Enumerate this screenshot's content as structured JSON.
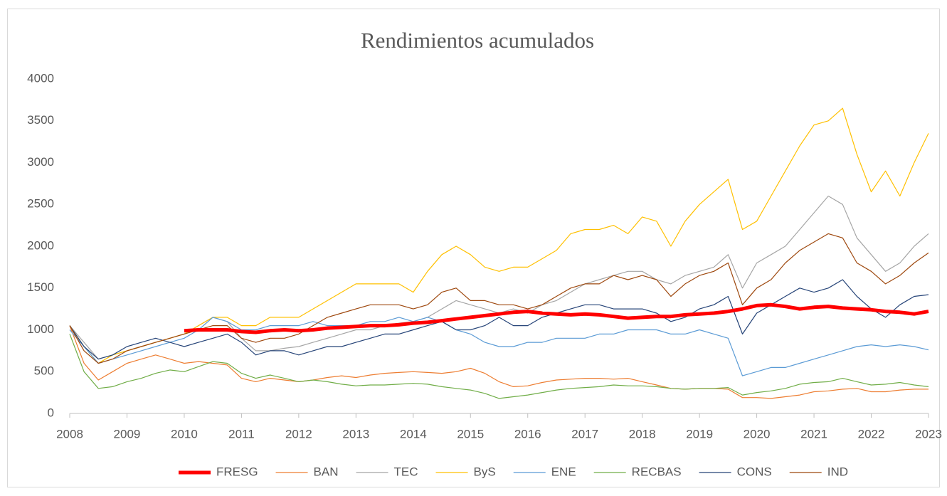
{
  "chart_data": {
    "type": "line",
    "title": "Rendimientos acumulados",
    "x": [
      2008,
      2008.25,
      2008.5,
      2008.75,
      2009,
      2009.25,
      2009.5,
      2009.75,
      2010,
      2010.25,
      2010.5,
      2010.75,
      2011,
      2011.25,
      2011.5,
      2011.75,
      2012,
      2012.25,
      2012.5,
      2012.75,
      2013,
      2013.25,
      2013.5,
      2013.75,
      2014,
      2014.25,
      2014.5,
      2014.75,
      2015,
      2015.25,
      2015.5,
      2015.75,
      2016,
      2016.25,
      2016.5,
      2016.75,
      2017,
      2017.25,
      2017.5,
      2017.75,
      2018,
      2018.25,
      2018.5,
      2018.75,
      2019,
      2019.25,
      2019.5,
      2019.75,
      2020,
      2020.25,
      2020.5,
      2020.75,
      2021,
      2021.25,
      2021.5,
      2021.75,
      2022,
      2022.25,
      2022.5,
      2022.75,
      2023
    ],
    "xlim": [
      2008,
      2023
    ],
    "xticks": [
      2008,
      2009,
      2010,
      2011,
      2012,
      2013,
      2014,
      2015,
      2016,
      2017,
      2018,
      2019,
      2020,
      2021,
      2022,
      2023
    ],
    "ylim": [
      0,
      4000
    ],
    "yticks": [
      0,
      500,
      1000,
      1500,
      2000,
      2500,
      3000,
      3500,
      4000
    ],
    "grid": false,
    "legend": "bottom",
    "series": [
      {
        "name": "FRESG",
        "color": "#ff0000",
        "values": [
          null,
          null,
          null,
          null,
          null,
          null,
          null,
          null,
          990,
          1000,
          1000,
          1000,
          980,
          970,
          990,
          1000,
          990,
          1000,
          1020,
          1030,
          1040,
          1050,
          1050,
          1060,
          1080,
          1090,
          1110,
          1130,
          1150,
          1170,
          1190,
          1210,
          1220,
          1200,
          1190,
          1180,
          1190,
          1180,
          1160,
          1140,
          1150,
          1160,
          1160,
          1180,
          1190,
          1200,
          1220,
          1250,
          1290,
          1300,
          1280,
          1250,
          1270,
          1280,
          1260,
          1250,
          1240,
          1220,
          1210,
          1190,
          1220
        ]
      },
      {
        "name": "BAN",
        "color": "#ed7d31",
        "values": [
          1050,
          600,
          400,
          500,
          600,
          650,
          700,
          650,
          600,
          620,
          600,
          580,
          420,
          380,
          420,
          400,
          380,
          400,
          430,
          450,
          430,
          460,
          480,
          490,
          500,
          490,
          480,
          500,
          540,
          480,
          380,
          320,
          330,
          370,
          400,
          410,
          420,
          420,
          410,
          420,
          380,
          340,
          300,
          290,
          300,
          300,
          290,
          190,
          190,
          180,
          200,
          220,
          260,
          270,
          290,
          300,
          260,
          260,
          280,
          290,
          290
        ]
      },
      {
        "name": "TEC",
        "color": "#a5a5a5",
        "values": [
          1050,
          850,
          650,
          700,
          750,
          800,
          850,
          900,
          950,
          1050,
          1150,
          1100,
          900,
          750,
          750,
          780,
          800,
          850,
          900,
          950,
          1000,
          1000,
          1050,
          1080,
          1100,
          1150,
          1250,
          1350,
          1300,
          1250,
          1200,
          1250,
          1200,
          1300,
          1350,
          1450,
          1550,
          1600,
          1650,
          1700,
          1700,
          1600,
          1550,
          1650,
          1700,
          1750,
          1900,
          1500,
          1800,
          1900,
          2000,
          2200,
          2400,
          2600,
          2500,
          2100,
          1900,
          1700,
          1800,
          2000,
          2150
        ]
      },
      {
        "name": "ByS",
        "color": "#ffc000",
        "values": [
          1050,
          800,
          600,
          700,
          750,
          800,
          850,
          900,
          950,
          1050,
          1150,
          1150,
          1050,
          1050,
          1150,
          1150,
          1150,
          1250,
          1350,
          1450,
          1550,
          1550,
          1550,
          1550,
          1450,
          1700,
          1900,
          2000,
          1900,
          1750,
          1700,
          1750,
          1750,
          1850,
          1950,
          2150,
          2200,
          2200,
          2250,
          2150,
          2350,
          2300,
          2000,
          2300,
          2500,
          2650,
          2800,
          2200,
          2300,
          2600,
          2900,
          3200,
          3450,
          3500,
          3650,
          3100,
          2650,
          2900,
          2600,
          3000,
          3350
        ]
      },
      {
        "name": "ENE",
        "color": "#5b9bd5",
        "values": [
          1000,
          800,
          600,
          650,
          700,
          750,
          800,
          850,
          900,
          1000,
          1150,
          1100,
          1000,
          1000,
          1050,
          1050,
          1050,
          1100,
          1050,
          1050,
          1050,
          1100,
          1100,
          1150,
          1100,
          1150,
          1100,
          1000,
          950,
          850,
          800,
          800,
          850,
          850,
          900,
          900,
          900,
          950,
          950,
          1000,
          1000,
          1000,
          950,
          950,
          1000,
          950,
          900,
          450,
          500,
          550,
          550,
          600,
          650,
          700,
          750,
          800,
          820,
          800,
          820,
          800,
          760
        ]
      },
      {
        "name": "RECBAS",
        "color": "#70ad47",
        "values": [
          950,
          500,
          300,
          320,
          380,
          420,
          480,
          520,
          500,
          560,
          620,
          600,
          480,
          420,
          460,
          420,
          380,
          400,
          380,
          350,
          330,
          340,
          340,
          350,
          360,
          350,
          320,
          300,
          280,
          240,
          180,
          200,
          220,
          250,
          280,
          300,
          310,
          320,
          340,
          330,
          330,
          320,
          300,
          290,
          300,
          300,
          310,
          220,
          250,
          270,
          300,
          350,
          370,
          380,
          420,
          380,
          340,
          350,
          370,
          340,
          320
        ]
      },
      {
        "name": "CONS",
        "color": "#264478",
        "values": [
          1050,
          800,
          650,
          700,
          800,
          850,
          900,
          850,
          800,
          850,
          900,
          950,
          850,
          700,
          750,
          750,
          700,
          750,
          800,
          800,
          850,
          900,
          950,
          950,
          1000,
          1050,
          1100,
          1000,
          1000,
          1050,
          1150,
          1050,
          1050,
          1150,
          1200,
          1250,
          1300,
          1300,
          1250,
          1250,
          1250,
          1200,
          1100,
          1150,
          1250,
          1300,
          1400,
          950,
          1200,
          1300,
          1400,
          1500,
          1450,
          1500,
          1600,
          1400,
          1250,
          1150,
          1300,
          1400,
          1420
        ]
      },
      {
        "name": "IND",
        "color": "#9e480e",
        "values": [
          1050,
          750,
          600,
          650,
          750,
          800,
          850,
          900,
          950,
          1000,
          1050,
          1050,
          900,
          850,
          900,
          900,
          950,
          1050,
          1150,
          1200,
          1250,
          1300,
          1300,
          1300,
          1250,
          1300,
          1450,
          1500,
          1350,
          1350,
          1300,
          1300,
          1250,
          1300,
          1400,
          1500,
          1550,
          1550,
          1650,
          1600,
          1650,
          1600,
          1400,
          1550,
          1650,
          1700,
          1800,
          1300,
          1500,
          1600,
          1800,
          1950,
          2050,
          2150,
          2100,
          1800,
          1700,
          1550,
          1650,
          1800,
          1920
        ]
      }
    ]
  }
}
